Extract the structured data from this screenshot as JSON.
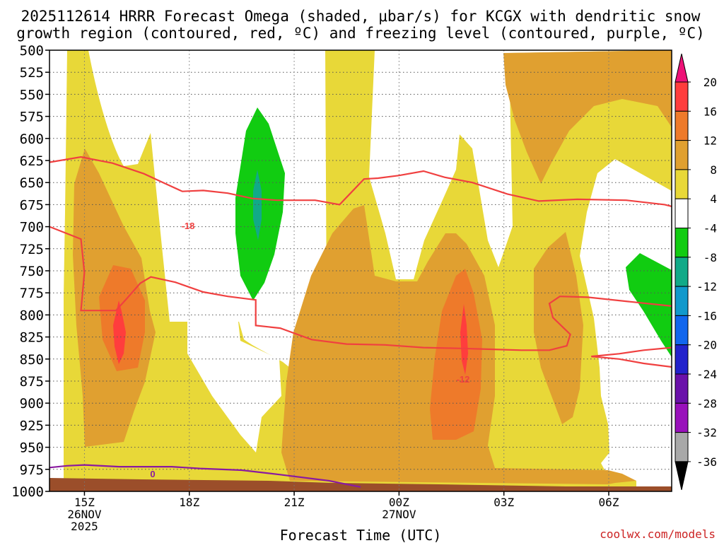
{
  "chart_data": {
    "type": "heatmap",
    "title_line1": "2025112614 HRRR Forecast Omega (shaded, μbar/s) for KCGX with dendritic snow",
    "title_line2": "growth region (contoured, red, ºC) and freezing level (contoured, purple, ºC)",
    "xlabel": "Forecast Time (UTC)",
    "credit": "coolwx.com/models",
    "x_ticks": [
      {
        "hour": 15,
        "line1": "15Z",
        "line2": "26NOV",
        "line3": "2025"
      },
      {
        "hour": 18,
        "line1": "18Z"
      },
      {
        "hour": 21,
        "line1": "21Z"
      },
      {
        "hour": 24,
        "line1": "00Z",
        "line2": "27NOV"
      },
      {
        "hour": 27,
        "line1": "03Z"
      },
      {
        "hour": 30,
        "line1": "06Z"
      }
    ],
    "x_range_hours": [
      14.0,
      31.8
    ],
    "y_range_mb": [
      500,
      1000
    ],
    "y_ticks": [
      "500",
      "525",
      "550",
      "575",
      "600",
      "625",
      "650",
      "675",
      "700",
      "725",
      "750",
      "775",
      "800",
      "825",
      "850",
      "875",
      "900",
      "925",
      "950",
      "975",
      "1000"
    ],
    "colorbar": {
      "labels": [
        "20",
        "16",
        "12",
        "8",
        "4",
        "-4",
        "-8",
        "-12",
        "-16",
        "-20",
        "-24",
        "-28",
        "-32",
        "-36"
      ],
      "colors": [
        "#f0f000",
        "#ff3d3d",
        "#ee7a2a",
        "#e0a030",
        "#e8d838",
        "#ffffff",
        "#11cc11",
        "#11aa88",
        "#1199cc",
        "#1166ee",
        "#2222cc",
        "#6a11aa",
        "#9911bb",
        "#a8a8a8"
      ],
      "top_arrow_color": "#ee1177",
      "bottom_arrow_color": "#000000"
    },
    "shading_colors": {
      "omega_4_8": "#e8d838",
      "omega_8_12": "#e0a030",
      "omega_12_16": "#ee7a2a",
      "omega_16_20": "#ff3d3d",
      "omega_neg4_neg8": "#11cc11",
      "omega_neg8_neg12": "#11aa88",
      "terrain": "#9b4e2a"
    },
    "contours": {
      "dgz_color": "#f04040",
      "dgz_labels": [
        "-18",
        "-12"
      ],
      "freezing_color": "#8a1aa0",
      "freezing_labels": [
        "0"
      ]
    },
    "contour_lines": {
      "dgz_upper": [
        [
          14.0,
          627
        ],
        [
          14.9,
          621
        ],
        [
          15.8,
          628
        ],
        [
          16.7,
          640
        ],
        [
          17.3,
          651
        ],
        [
          17.8,
          660
        ],
        [
          18.4,
          659
        ],
        [
          19.1,
          662
        ],
        [
          19.8,
          668
        ],
        [
          20.5,
          670
        ],
        [
          21.6,
          670
        ],
        [
          22.3,
          675
        ],
        [
          23.0,
          646
        ],
        [
          23.4,
          645
        ],
        [
          24.0,
          642
        ],
        [
          24.7,
          637
        ],
        [
          25.3,
          644
        ],
        [
          26.1,
          650
        ],
        [
          27.1,
          663
        ],
        [
          28.0,
          671
        ],
        [
          29.1,
          669
        ],
        [
          30.5,
          670
        ],
        [
          31.6,
          675
        ],
        [
          31.8,
          677
        ]
      ],
      "dgz_lower": [
        [
          14.0,
          700
        ],
        [
          14.9,
          714
        ],
        [
          15.0,
          752
        ],
        [
          14.9,
          795
        ],
        [
          15.9,
          795
        ],
        [
          16.2,
          782
        ],
        [
          16.6,
          764
        ],
        [
          16.9,
          757
        ],
        [
          17.6,
          763
        ],
        [
          18.4,
          774
        ],
        [
          19.1,
          779
        ],
        [
          19.9,
          783
        ],
        [
          19.9,
          812
        ],
        [
          20.6,
          815
        ],
        [
          21.5,
          828
        ],
        [
          22.5,
          833
        ],
        [
          23.6,
          834
        ],
        [
          24.7,
          837
        ],
        [
          25.8,
          838
        ],
        [
          26.7,
          839
        ],
        [
          27.5,
          840
        ],
        [
          28.3,
          840
        ],
        [
          28.8,
          835
        ],
        [
          28.9,
          822
        ],
        [
          28.4,
          803
        ],
        [
          28.3,
          787
        ],
        [
          28.6,
          779
        ],
        [
          29.4,
          780
        ],
        [
          30.6,
          785
        ],
        [
          31.8,
          790
        ]
      ],
      "dgz_corner": [
        [
          29.5,
          847
        ],
        [
          30.3,
          844
        ],
        [
          31.0,
          840
        ],
        [
          31.8,
          837
        ]
      ],
      "dgz_corner2": [
        [
          29.5,
          847
        ],
        [
          30.3,
          850
        ],
        [
          31.0,
          855
        ],
        [
          31.8,
          859
        ]
      ],
      "freezing": [
        [
          14.0,
          973
        ],
        [
          14.5,
          971
        ],
        [
          15.0,
          970
        ],
        [
          16.0,
          972
        ],
        [
          17.5,
          972
        ],
        [
          18.3,
          974
        ],
        [
          19.5,
          976
        ],
        [
          20.6,
          981
        ],
        [
          22.0,
          988
        ],
        [
          22.9,
          995
        ]
      ]
    }
  }
}
